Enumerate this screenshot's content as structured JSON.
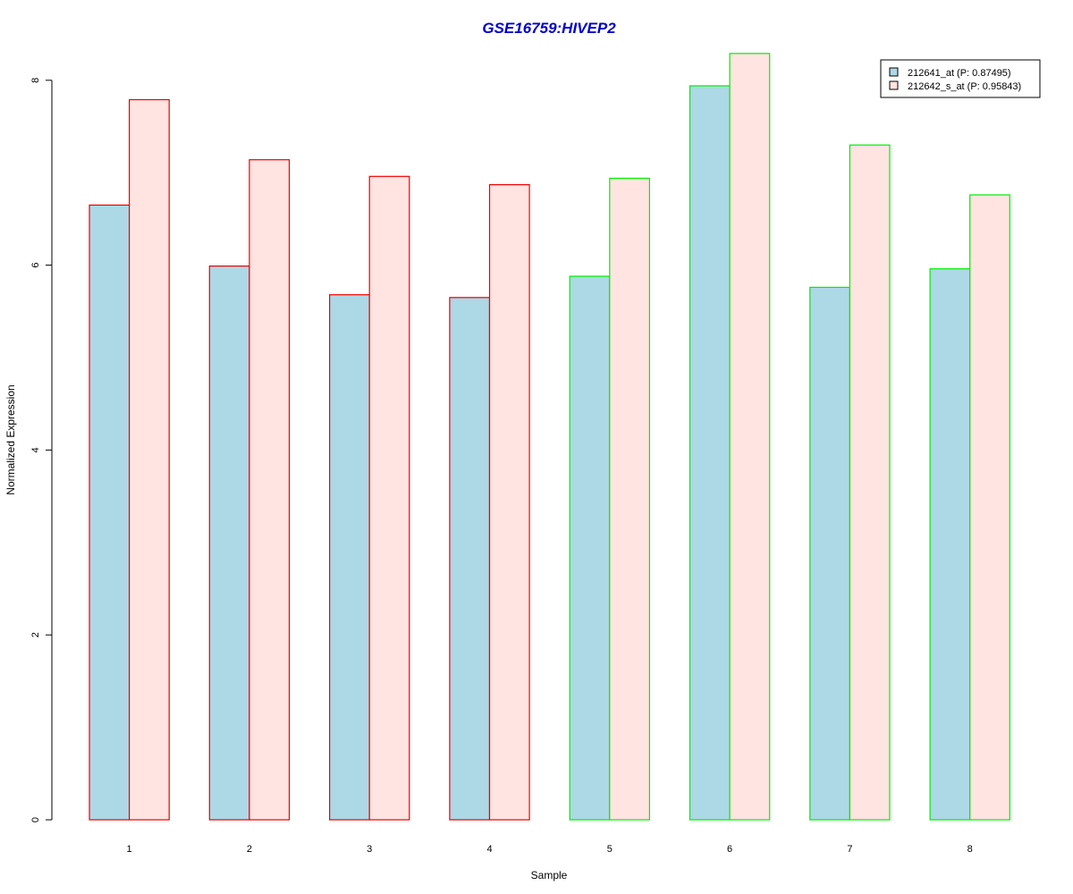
{
  "chart_data": {
    "type": "bar",
    "title": "GSE16759:HIVEP2",
    "xlabel": "Sample",
    "ylabel": "Normalized Expression",
    "categories": [
      "1",
      "2",
      "3",
      "4",
      "5",
      "6",
      "7",
      "8"
    ],
    "series": [
      {
        "name": "212641_at (P: 0.87495)",
        "values": [
          6.65,
          5.99,
          5.68,
          5.65,
          5.88,
          7.94,
          5.76,
          5.96
        ]
      },
      {
        "name": "212642_s_at (P: 0.95843)",
        "values": [
          7.79,
          7.14,
          6.96,
          6.87,
          6.94,
          8.29,
          7.3,
          6.76
        ]
      }
    ],
    "yticks": [
      "0",
      "2",
      "4",
      "6",
      "8"
    ],
    "ylim": [
      0,
      8.3
    ],
    "legend_position": "top-right",
    "grid": false
  },
  "colors": {
    "title": "#0000cc",
    "series_fills": [
      "#add8e6",
      "#ffe4e1"
    ],
    "group_borders": [
      "#ee0000",
      "#ee0000",
      "#ee0000",
      "#ee0000",
      "#00ee00",
      "#00ee00",
      "#00ee00",
      "#00ee00"
    ],
    "legend_border": "#000000",
    "axis": "#000000"
  }
}
